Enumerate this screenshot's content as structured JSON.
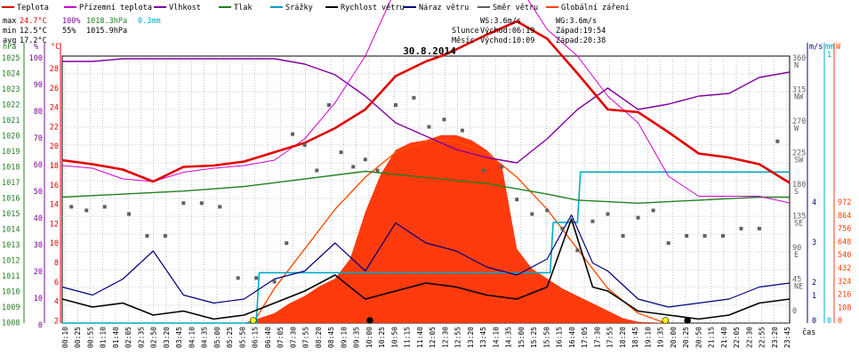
{
  "chart_data": {
    "type": "line",
    "title": "30.8.2014",
    "legend": [
      {
        "name": "Teplota",
        "color": "#e00000"
      },
      {
        "name": "Přízemní teplota",
        "color": "#d000d0"
      },
      {
        "name": "Vlhkost",
        "color": "#8000a0"
      },
      {
        "name": "Tlak",
        "color": "#208020"
      },
      {
        "name": "Srážky",
        "color": "#00a0c0"
      },
      {
        "name": "Rychlost větru",
        "color": "#000000"
      },
      {
        "name": "Náraz větru",
        "color": "#000080"
      },
      {
        "name": "Směr větru",
        "color": "#606060"
      },
      {
        "name": "Globální záření",
        "color": "#ff4000"
      }
    ],
    "stats": {
      "max_label": "max",
      "max_temp": "24.7°C",
      "max_hum": "100%",
      "max_press": "1018.3hPa",
      "max_rain": "0.3mm",
      "min_label": "min",
      "min_temp": "12.5°C",
      "min_hum": "55%",
      "min_press": "1015.9hPa",
      "avg_label": "avg",
      "avg_temp": "17.2°C"
    },
    "sun": {
      "ws": "WS:3.6m/s",
      "wg": "WG:3.6m/s",
      "sun_label": "Slunce",
      "sun_rise": "Východ:06:19",
      "sun_set": "Západ:19:54",
      "moon_label": "Měsíc",
      "moon_rise": "Východ:10:09",
      "moon_set": "Západ:20:38"
    },
    "axis_units": {
      "hpa": "hPa",
      "pct": "%",
      "deg": "°C",
      "ms": "m/s",
      "mm": "mm",
      "w": "W"
    },
    "x_label": "čas",
    "x_ticks": [
      "00:10",
      "00:25",
      "00:55",
      "01:10",
      "01:40",
      "02:05",
      "02:35",
      "02:50",
      "03:20",
      "03:45",
      "04:10",
      "04:35",
      "05:00",
      "05:25",
      "05:50",
      "06:15",
      "06:40",
      "07:05",
      "07:30",
      "07:55",
      "08:20",
      "08:45",
      "09:10",
      "09:35",
      "10:00",
      "10:25",
      "10:50",
      "11:15",
      "11:40",
      "12:05",
      "12:30",
      "12:55",
      "13:20",
      "13:45",
      "14:10",
      "14:35",
      "15:00",
      "15:25",
      "15:50",
      "16:15",
      "16:40",
      "17:05",
      "17:30",
      "17:55",
      "18:20",
      "18:45",
      "19:10",
      "19:35",
      "20:00",
      "20:25",
      "20:50",
      "21:15",
      "21:40",
      "22:05",
      "22:30",
      "22:55",
      "23:20",
      "23:45"
    ],
    "y_axes": {
      "pressure_hpa": {
        "range": [
          1008,
          1025
        ],
        "ticks": [
          1025,
          1024,
          1023,
          1022,
          1021,
          1020,
          1019,
          1018,
          1017,
          1016,
          1015,
          1014,
          1013,
          1012,
          1011,
          1010,
          1009,
          1008
        ]
      },
      "humidity_pct": {
        "range": [
          0,
          100
        ],
        "ticks": [
          100,
          90,
          80,
          70,
          60,
          50,
          40,
          30,
          20,
          10,
          0
        ]
      },
      "temperature_c": {
        "range": [
          2,
          30
        ],
        "ticks": [
          28,
          26,
          24,
          22,
          20,
          18,
          16,
          14,
          12,
          10,
          8,
          6,
          4,
          2
        ]
      },
      "wind_direction": {
        "ticks": [
          {
            "v": "360",
            "d": "N"
          },
          {
            "v": "315",
            "d": "NW"
          },
          {
            "v": "270",
            "d": "W"
          },
          {
            "v": "225",
            "d": "SW"
          },
          {
            "v": "180",
            "d": "S"
          },
          {
            "v": "135",
            "d": "SE"
          },
          {
            "v": "90",
            "d": "E"
          },
          {
            "v": "45",
            "d": "NE"
          },
          {
            "v": "0",
            "d": ""
          }
        ]
      },
      "wind_speed_ms": {
        "ticks": [
          {
            "v": "4",
            "k": 230
          },
          {
            "v": "3",
            "k": 275
          },
          {
            "v": "2",
            "k": 320
          },
          {
            "v": "1",
            "k": 335
          },
          {
            "v": "0",
            "k": 363
          }
        ]
      },
      "rain_mm": {
        "ticks": [
          {
            "v": "1",
            "k": 64
          },
          {
            "v": "0",
            "k": 363
          }
        ]
      },
      "radiation_w": {
        "ticks": [
          "972",
          "864",
          "756",
          "648",
          "540",
          "432",
          "324",
          "216",
          "108",
          "0"
        ]
      }
    },
    "series": [
      {
        "name": "Teplota",
        "unit": "°C",
        "x": [
          0,
          1,
          2,
          3,
          4,
          5,
          6,
          7,
          8,
          9,
          10,
          11,
          12,
          12.5,
          13,
          14,
          15,
          16,
          17,
          18,
          19,
          20,
          21,
          22,
          23,
          24
        ],
        "values": [
          14.2,
          13.9,
          13.5,
          12.6,
          13.7,
          13.8,
          14.1,
          14.8,
          15.5,
          16.6,
          18.0,
          20.5,
          21.6,
          22.0,
          22.5,
          23.6,
          24.6,
          23.3,
          20.7,
          18.0,
          17.8,
          16.3,
          14.7,
          14.4,
          13.9,
          12.5
        ]
      },
      {
        "name": "Přízemní teplota",
        "unit": "°C",
        "x": [
          0,
          1,
          2,
          3,
          4,
          5,
          6,
          7,
          8,
          9,
          10,
          11,
          12,
          13,
          14,
          15,
          16,
          17,
          18,
          19,
          20,
          21,
          22,
          23,
          24
        ],
        "values": [
          13.8,
          13.6,
          12.8,
          12.6,
          13.3,
          13.6,
          13.8,
          14.2,
          15.8,
          18.5,
          22.0,
          27.0,
          28.5,
          28.5,
          28.0,
          27.5,
          24.0,
          22.0,
          19.0,
          17.0,
          13.0,
          11.5,
          11.5,
          11.5,
          11.0
        ]
      },
      {
        "name": "Vlhkost",
        "unit": "%",
        "x": [
          0,
          1,
          2,
          3,
          4,
          5,
          6,
          7,
          8,
          9,
          10,
          11,
          12,
          13,
          14,
          15,
          16,
          17,
          18,
          19,
          20,
          21,
          22,
          23,
          24
        ],
        "values": [
          98,
          98,
          99,
          99,
          99,
          99,
          99,
          99,
          97,
          93,
          85,
          75,
          70,
          65,
          62,
          60,
          69,
          80,
          88,
          80,
          82,
          85,
          86,
          92,
          94
        ]
      },
      {
        "name": "Tlak",
        "unit": "hPa",
        "x": [
          0,
          2,
          4,
          6,
          8,
          10,
          12,
          14,
          16,
          17,
          18,
          19,
          20,
          21,
          22,
          23,
          24
        ],
        "values": [
          1016.3,
          1016.5,
          1016.7,
          1017.0,
          1017.5,
          1018.0,
          1017.6,
          1017.2,
          1016.5,
          1016.1,
          1016.0,
          1015.9,
          1016.0,
          1016.1,
          1016.2,
          1016.3,
          1016.3
        ]
      },
      {
        "name": "Srážky",
        "unit": "mm",
        "x": [
          0,
          6.4,
          6.5,
          16.1,
          16.2,
          17.0,
          17.1,
          24
        ],
        "values": [
          0,
          0,
          0.1,
          0.1,
          0.2,
          0.2,
          0.3,
          0.3
        ]
      },
      {
        "name": "Rychlost větru",
        "unit": "m/s",
        "x": [
          0,
          1,
          2,
          3,
          4,
          5,
          6,
          7,
          8,
          9,
          10,
          11,
          12,
          13,
          14,
          15,
          16,
          16.8,
          17.5,
          18,
          19,
          20,
          21,
          22,
          23,
          24
        ],
        "values": [
          0.6,
          0.4,
          0.5,
          0.2,
          0.3,
          0.1,
          0.2,
          0.5,
          0.8,
          1.2,
          0.6,
          0.8,
          1.0,
          0.9,
          0.7,
          0.6,
          0.9,
          2.6,
          0.9,
          0.8,
          0.3,
          0.2,
          0.1,
          0.2,
          0.5,
          0.6
        ]
      },
      {
        "name": "Náraz větru",
        "unit": "m/s",
        "x": [
          0,
          1,
          2,
          3,
          4,
          5,
          6,
          7,
          8,
          9,
          10,
          11,
          12,
          13,
          14,
          15,
          16,
          16.8,
          17.5,
          18,
          19,
          20,
          21,
          22,
          23,
          24
        ],
        "values": [
          0.9,
          0.7,
          1.1,
          1.8,
          0.7,
          0.5,
          0.6,
          1.1,
          1.3,
          2.0,
          1.3,
          2.5,
          2.0,
          1.8,
          1.4,
          1.2,
          1.6,
          2.7,
          1.5,
          1.3,
          0.6,
          0.4,
          0.5,
          0.6,
          0.9,
          1.0
        ]
      },
      {
        "name": "Globální záření",
        "unit": "W",
        "x": [
          0,
          6,
          6.5,
          7,
          7.5,
          8,
          8.5,
          9,
          9.5,
          10,
          10.5,
          11,
          11.5,
          12,
          12.5,
          13,
          13.5,
          14,
          14.5,
          15,
          15.5,
          16,
          16.5,
          17,
          17.5,
          18,
          18.5,
          19,
          20,
          24
        ],
        "values": [
          0,
          0,
          20,
          40,
          80,
          110,
          150,
          180,
          260,
          450,
          600,
          700,
          730,
          740,
          760,
          760,
          740,
          700,
          640,
          300,
          220,
          180,
          140,
          110,
          80,
          50,
          20,
          5,
          0,
          0
        ]
      },
      {
        "name": "Globální záření (teoretické)",
        "unit": "W",
        "x": [
          6.3,
          7,
          8,
          9,
          10,
          11,
          12,
          12.5,
          13,
          14,
          15,
          16,
          17,
          18,
          19,
          19.9
        ],
        "values": [
          0,
          140,
          300,
          460,
          590,
          690,
          735,
          740,
          735,
          690,
          590,
          460,
          300,
          140,
          40,
          0
        ]
      }
    ],
    "wind_direction_points": {
      "x": [
        0.3,
        0.8,
        1.4,
        2.2,
        2.8,
        3.4,
        4.0,
        4.6,
        5.2,
        5.8,
        6.4,
        7.0,
        7.4,
        7.6,
        8.0,
        8.4,
        8.8,
        9.2,
        9.6,
        10.0,
        10.4,
        11.0,
        11.6,
        12.1,
        12.6,
        13.2,
        13.9,
        14.5,
        15.0,
        15.5,
        16.0,
        16.5,
        17.0,
        17.5,
        18.0,
        18.5,
        19.0,
        19.5,
        20.0,
        20.6,
        21.2,
        21.8,
        22.4,
        23.0,
        23.6
      ],
      "values": [
        160,
        155,
        160,
        150,
        120,
        120,
        165,
        165,
        160,
        62,
        62,
        57,
        110,
        260,
        245,
        210,
        300,
        235,
        215,
        225,
        210,
        300,
        310,
        270,
        280,
        265,
        210,
        215,
        170,
        150,
        155,
        130,
        100,
        140,
        150,
        120,
        145,
        155,
        110,
        120,
        120,
        120,
        130,
        130,
        250
      ]
    },
    "markers": [
      {
        "type": "sunrise",
        "x": 6.3
      },
      {
        "type": "sunset",
        "x": 19.9
      },
      {
        "type": "moonrise",
        "x": 10.15
      },
      {
        "type": "moonset",
        "x": 20.63
      }
    ]
  }
}
